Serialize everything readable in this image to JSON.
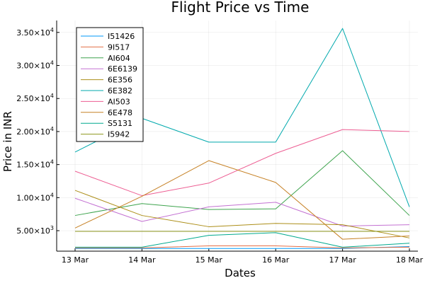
{
  "chart_data": {
    "type": "line",
    "title": "Flight Price vs Time",
    "xlabel": "Dates",
    "ylabel": "Price in INR",
    "categories": [
      "13 Mar",
      "14 Mar",
      "15 Mar",
      "16 Mar",
      "17 Mar",
      "18 Mar"
    ],
    "ylim": [
      1900,
      36800
    ],
    "yticks": [
      {
        "value": 5000,
        "mantissa": "5.00",
        "exp": "3"
      },
      {
        "value": 10000,
        "mantissa": "1.00",
        "exp": "4"
      },
      {
        "value": 15000,
        "mantissa": "1.50",
        "exp": "4"
      },
      {
        "value": 20000,
        "mantissa": "2.00",
        "exp": "4"
      },
      {
        "value": 25000,
        "mantissa": "2.50",
        "exp": "4"
      },
      {
        "value": 30000,
        "mantissa": "3.00",
        "exp": "4"
      },
      {
        "value": 35000,
        "mantissa": "3.50",
        "exp": "4"
      }
    ],
    "grid": true,
    "legend_position": "top-left",
    "series": [
      {
        "name": "I51426",
        "color": "#009AFA",
        "values": [
          2300,
          2300,
          2300,
          2300,
          2300,
          2600
        ]
      },
      {
        "name": "9I517",
        "color": "#E36F47",
        "values": [
          2400,
          2400,
          2700,
          2700,
          2400,
          2500
        ]
      },
      {
        "name": "AI604",
        "color": "#3EA44E",
        "values": [
          7300,
          9100,
          8200,
          8300,
          17100,
          7300
        ]
      },
      {
        "name": "6E6139",
        "color": "#C371D2",
        "values": [
          9900,
          6400,
          8600,
          9300,
          5700,
          5900
        ]
      },
      {
        "name": "6E356",
        "color": "#AC8E18",
        "values": [
          11100,
          7300,
          5600,
          6100,
          5900,
          3900
        ]
      },
      {
        "name": "6E382",
        "color": "#00A9AD",
        "values": [
          16900,
          22000,
          18400,
          18400,
          35600,
          8600
        ]
      },
      {
        "name": "AI503",
        "color": "#ED5E93",
        "values": [
          14000,
          10300,
          12200,
          16700,
          20300,
          20000
        ]
      },
      {
        "name": "6E478",
        "color": "#C68125",
        "values": [
          5400,
          10200,
          15600,
          12300,
          3700,
          4200
        ]
      },
      {
        "name": "S5131",
        "color": "#00A98D",
        "values": [
          2500,
          2500,
          4300,
          4700,
          2500,
          3100
        ]
      },
      {
        "name": "I5942",
        "color": "#8E971D",
        "values": [
          4900,
          4900,
          4900,
          4900,
          4900,
          4900
        ]
      }
    ]
  }
}
